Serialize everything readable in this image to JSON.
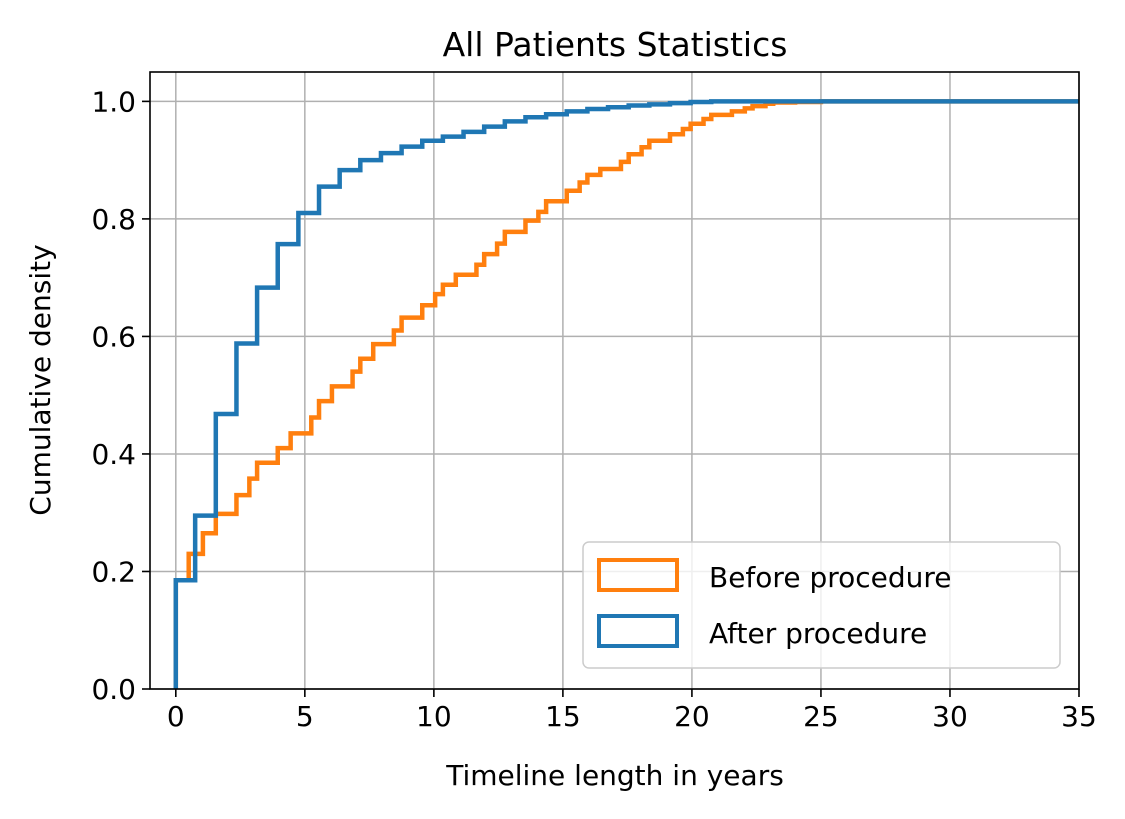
{
  "chart_data": {
    "type": "line",
    "step": true,
    "title": "All Patients Statistics",
    "xlabel": "Timeline length in years",
    "ylabel": "Cumulative density",
    "xlim": [
      -1,
      35
    ],
    "ylim": [
      0,
      1.05
    ],
    "x_ticks": [
      0,
      5,
      10,
      15,
      20,
      25,
      30,
      35
    ],
    "x_tick_labels": [
      "0",
      "5",
      "10",
      "15",
      "20",
      "25",
      "30",
      "35"
    ],
    "y_ticks": [
      0.0,
      0.2,
      0.4,
      0.6,
      0.8,
      1.0
    ],
    "y_tick_labels": [
      "0.0",
      "0.2",
      "0.4",
      "0.6",
      "0.8",
      "1.0"
    ],
    "grid": true,
    "legend_position": "bottom-right",
    "series": [
      {
        "name": "Before procedure",
        "color": "#ff7f0e",
        "x": [
          0.0,
          0.5,
          0.75,
          1.05,
          1.55,
          2.05,
          2.35,
          2.85,
          3.15,
          3.65,
          3.95,
          4.45,
          4.75,
          5.25,
          5.55,
          6.05,
          6.35,
          6.85,
          7.15,
          7.65,
          7.95,
          8.45,
          8.75,
          9.25,
          9.55,
          10.05,
          10.35,
          10.85,
          11.15,
          11.65,
          11.95,
          12.45,
          12.75,
          13.25,
          13.55,
          14.05,
          14.35,
          14.85,
          15.15,
          15.65,
          15.95,
          16.45,
          16.75,
          17.25,
          17.55,
          18.05,
          18.35,
          18.85,
          19.15,
          19.65,
          19.95,
          20.45,
          20.75,
          21.25,
          21.55,
          22.05,
          22.35,
          22.85,
          23.15,
          24.0,
          25.0,
          26.0,
          28.0,
          35.0
        ],
        "y": [
          0.185,
          0.23,
          0.23,
          0.265,
          0.298,
          0.298,
          0.33,
          0.358,
          0.385,
          0.385,
          0.41,
          0.435,
          0.435,
          0.462,
          0.49,
          0.515,
          0.515,
          0.54,
          0.562,
          0.587,
          0.587,
          0.61,
          0.632,
          0.632,
          0.653,
          0.672,
          0.688,
          0.705,
          0.705,
          0.722,
          0.74,
          0.758,
          0.778,
          0.778,
          0.797,
          0.812,
          0.83,
          0.83,
          0.848,
          0.862,
          0.875,
          0.885,
          0.885,
          0.897,
          0.91,
          0.922,
          0.933,
          0.933,
          0.944,
          0.953,
          0.962,
          0.97,
          0.977,
          0.977,
          0.983,
          0.988,
          0.992,
          0.996,
          0.998,
          0.999,
          1.0,
          1.0,
          1.0,
          1.0
        ]
      },
      {
        "name": "After procedure",
        "color": "#1f77b4",
        "x": [
          0.0,
          0.75,
          1.55,
          2.35,
          3.15,
          3.95,
          4.75,
          5.55,
          6.35,
          7.15,
          7.95,
          8.75,
          9.55,
          10.35,
          11.15,
          11.95,
          12.75,
          13.55,
          14.35,
          15.15,
          15.95,
          16.75,
          17.55,
          18.35,
          19.15,
          19.95,
          20.75,
          21.55,
          35.0
        ],
        "y": [
          0.185,
          0.295,
          0.468,
          0.588,
          0.683,
          0.757,
          0.81,
          0.855,
          0.883,
          0.9,
          0.912,
          0.923,
          0.933,
          0.94,
          0.948,
          0.957,
          0.966,
          0.973,
          0.978,
          0.983,
          0.987,
          0.99,
          0.993,
          0.995,
          0.997,
          0.999,
          1.0,
          1.0,
          1.0
        ]
      }
    ]
  }
}
